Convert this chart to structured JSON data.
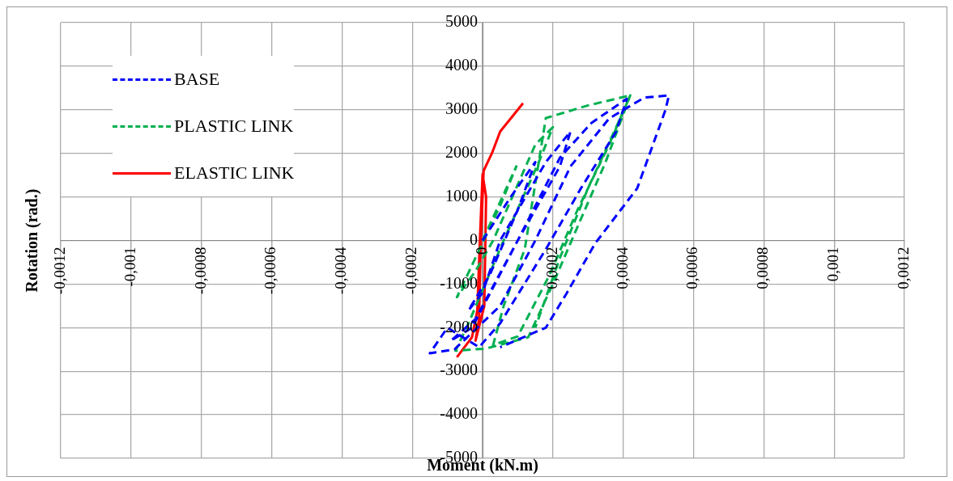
{
  "chart_data": {
    "type": "line",
    "xlabel": "Moment (kN.m)",
    "ylabel": "Rotation (rad.)",
    "xlim": [
      -0.0012,
      0.0012
    ],
    "ylim": [
      -5000,
      5000
    ],
    "xticks": [
      {
        "value": -0.0012,
        "label": "-0,0012"
      },
      {
        "value": -0.001,
        "label": "-0,001"
      },
      {
        "value": -0.0008,
        "label": "-0,0008"
      },
      {
        "value": -0.0006,
        "label": "-0,0006"
      },
      {
        "value": -0.0004,
        "label": "-0,0004"
      },
      {
        "value": -0.0002,
        "label": "-0,0002"
      },
      0,
      {
        "value": 0.0002,
        "label": "0,0002"
      },
      {
        "value": 0.0004,
        "label": "0,0004"
      },
      {
        "value": 0.0006,
        "label": "0,0006"
      },
      {
        "value": 0.0008,
        "label": "0,0008"
      },
      {
        "value": 0.001,
        "label": "0,001"
      },
      {
        "value": 0.0012,
        "label": "0,0012"
      }
    ],
    "yticks": [
      -5000,
      -4000,
      -3000,
      -2000,
      -1000,
      0,
      1000,
      2000,
      3000,
      4000,
      5000
    ],
    "grid": true,
    "legend": "top left",
    "marker": "none",
    "series": [
      {
        "name": "BASE",
        "color": "#0000ff",
        "line_style": "dashed",
        "x": [
          0,
          8e-05,
          0.00015,
          0.0001,
          2e-05,
          -4e-05,
          0,
          5e-05,
          0.00018,
          0.00025,
          0.00022,
          0.0001,
          -2e-05,
          -9e-05,
          -3e-05,
          0.0001,
          0.00022,
          0.00031,
          0.00041,
          0.00038,
          0.00028,
          0.00018,
          5e-05,
          -1e-05,
          -0.0001,
          -0.00015,
          -8e-05,
          5e-05,
          0.00015,
          0.00025,
          0.00036,
          0.00046,
          0.00053,
          0.00052,
          0.00044,
          0.00032,
          0.00024,
          0.00018,
          5e-05
        ],
        "values": [
          0,
          1000,
          1800,
          700,
          -800,
          -1600,
          -1200,
          0,
          1800,
          2500,
          1700,
          0,
          -1800,
          -2300,
          -2000,
          0,
          1900,
          2700,
          3250,
          2500,
          1200,
          -200,
          -1900,
          -2450,
          -2000,
          -2590,
          -2500,
          -1500,
          0,
          1700,
          2800,
          3280,
          3330,
          2990,
          1200,
          -70,
          -1200,
          -2000,
          -2450
        ]
      },
      {
        "name": "PLASTIC LINK",
        "color": "#00b050",
        "line_style": "dashed",
        "x": [
          0,
          9.6e-05,
          5e-05,
          -7.3e-05,
          -2e-05,
          3e-05,
          0.00015,
          0.0002,
          0.00016,
          6e-05,
          -4e-05,
          -7.7e-05,
          1e-05,
          0.00013,
          0.0002,
          0.00028,
          0.00035,
          0.00042,
          0.00036,
          0.00027,
          0.00019,
          0.0001,
          3e-05,
          6e-05,
          0.00012,
          0.00018,
          0.0003,
          0.00042,
          0.00038,
          0.0003,
          0.00022,
          0.00015
        ],
        "values": [
          0,
          1700,
          800,
          -1300,
          -700,
          0,
          2200,
          2600,
          1800,
          0,
          -1900,
          -2530,
          -2480,
          -2220,
          -1000,
          500,
          1800,
          3330,
          2200,
          700,
          -800,
          -2200,
          -2400,
          -1500,
          -200,
          2810,
          3100,
          3330,
          2600,
          1200,
          -400,
          -2000
        ]
      },
      {
        "name": "ELASTIC LINK",
        "color": "#ff0000",
        "line_style": "solid",
        "x": [
          -7.3e-05,
          -3e-05,
          -1.5e-05,
          -8e-06,
          0,
          1e-05,
          5e-06,
          -2e-05,
          -1e-05,
          -5e-06,
          3e-06,
          2.7e-05,
          5e-05,
          0.000115
        ],
        "values": [
          -2680,
          -2220,
          -1610,
          -70,
          1520,
          1000,
          -1500,
          -2300,
          -1800,
          0,
          1600,
          2010,
          2500,
          3150
        ]
      }
    ]
  }
}
